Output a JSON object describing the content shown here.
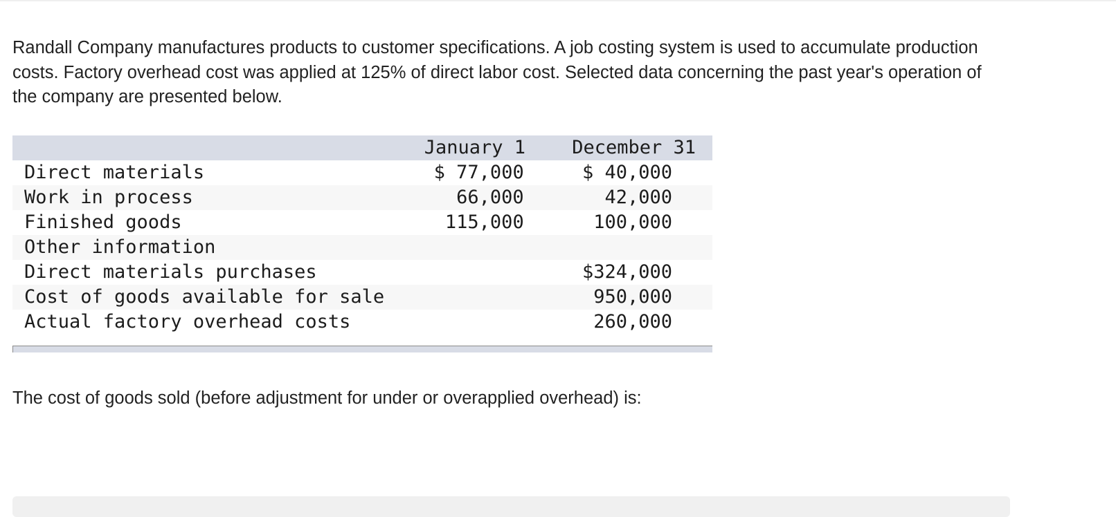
{
  "intro_text": "Randall Company manufactures products to customer specifications. A job costing system is used to accumulate production costs. Factory overhead cost was applied at 125% of direct labor cost. Selected data concerning the past year's operation of the company are presented below.",
  "table": {
    "header": {
      "label": "",
      "jan": "January 1",
      "dec": "December 31"
    },
    "rows": [
      {
        "label": "Direct materials",
        "jan": "$ 77,000",
        "dec": "$ 40,000"
      },
      {
        "label": "Work in process",
        "jan": "66,000",
        "dec": "42,000"
      },
      {
        "label": "Finished goods",
        "jan": "115,000",
        "dec": "100,000"
      },
      {
        "label": "Other information",
        "jan": "",
        "dec": ""
      },
      {
        "label": "Direct materials purchases",
        "jan": "",
        "dec": "$324,000"
      },
      {
        "label": "Cost of goods available for sale",
        "jan": "",
        "dec": "950,000"
      },
      {
        "label": "Actual factory overhead costs",
        "jan": "",
        "dec": "260,000"
      }
    ]
  },
  "question_text": "The cost of goods sold (before adjustment for under or overapplied overhead) is:"
}
